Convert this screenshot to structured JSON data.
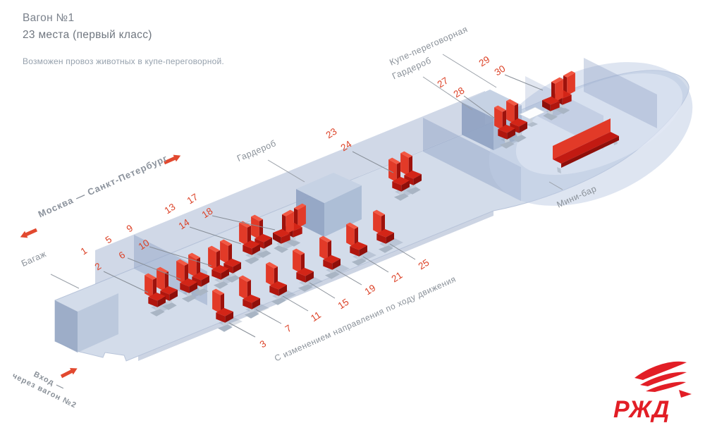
{
  "header": {
    "title": "Вагон №1",
    "subtitle": "23 места  (первый класс)",
    "note": "Возможен провоз животных в купе-переговорной."
  },
  "route": {
    "label": "Москва — Санкт-Петербург"
  },
  "area_labels": {
    "baggage": "Багаж",
    "wardrobe_main": "Гардероб",
    "meeting_room": "Купе-переговорная",
    "wardrobe_meeting": "Гардероб",
    "minibar": "Мини-бар",
    "entrance_line1": "Вход —",
    "entrance_line2": "через вагон №2",
    "direction_note": "С изменением направления по ходу движения"
  },
  "seats": {
    "window_pairs": [
      [
        "1",
        "2"
      ],
      [
        "5",
        "6"
      ],
      [
        "9",
        "10"
      ],
      [
        "13",
        "14"
      ],
      [
        "17",
        "18"
      ],
      [
        "23",
        "24"
      ],
      [
        "27",
        "28"
      ],
      [
        "29",
        "30"
      ]
    ],
    "aisle_singles": [
      "3",
      "7",
      "11",
      "15",
      "19",
      "21",
      "25"
    ]
  },
  "logo": {
    "text": "РЖД"
  },
  "colors": {
    "seat_red": "#e23a28",
    "number_red": "#dc4227",
    "label_gray": "#8a9199",
    "floor_blue": "#d3dcea",
    "accent_red": "#e2492f"
  }
}
